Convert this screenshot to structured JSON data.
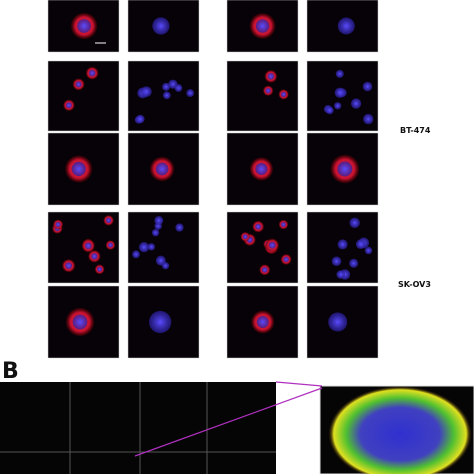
{
  "labels": {
    "panel_b": "B",
    "bt474": "BT-474",
    "skov3": "SK-OV3"
  }
}
